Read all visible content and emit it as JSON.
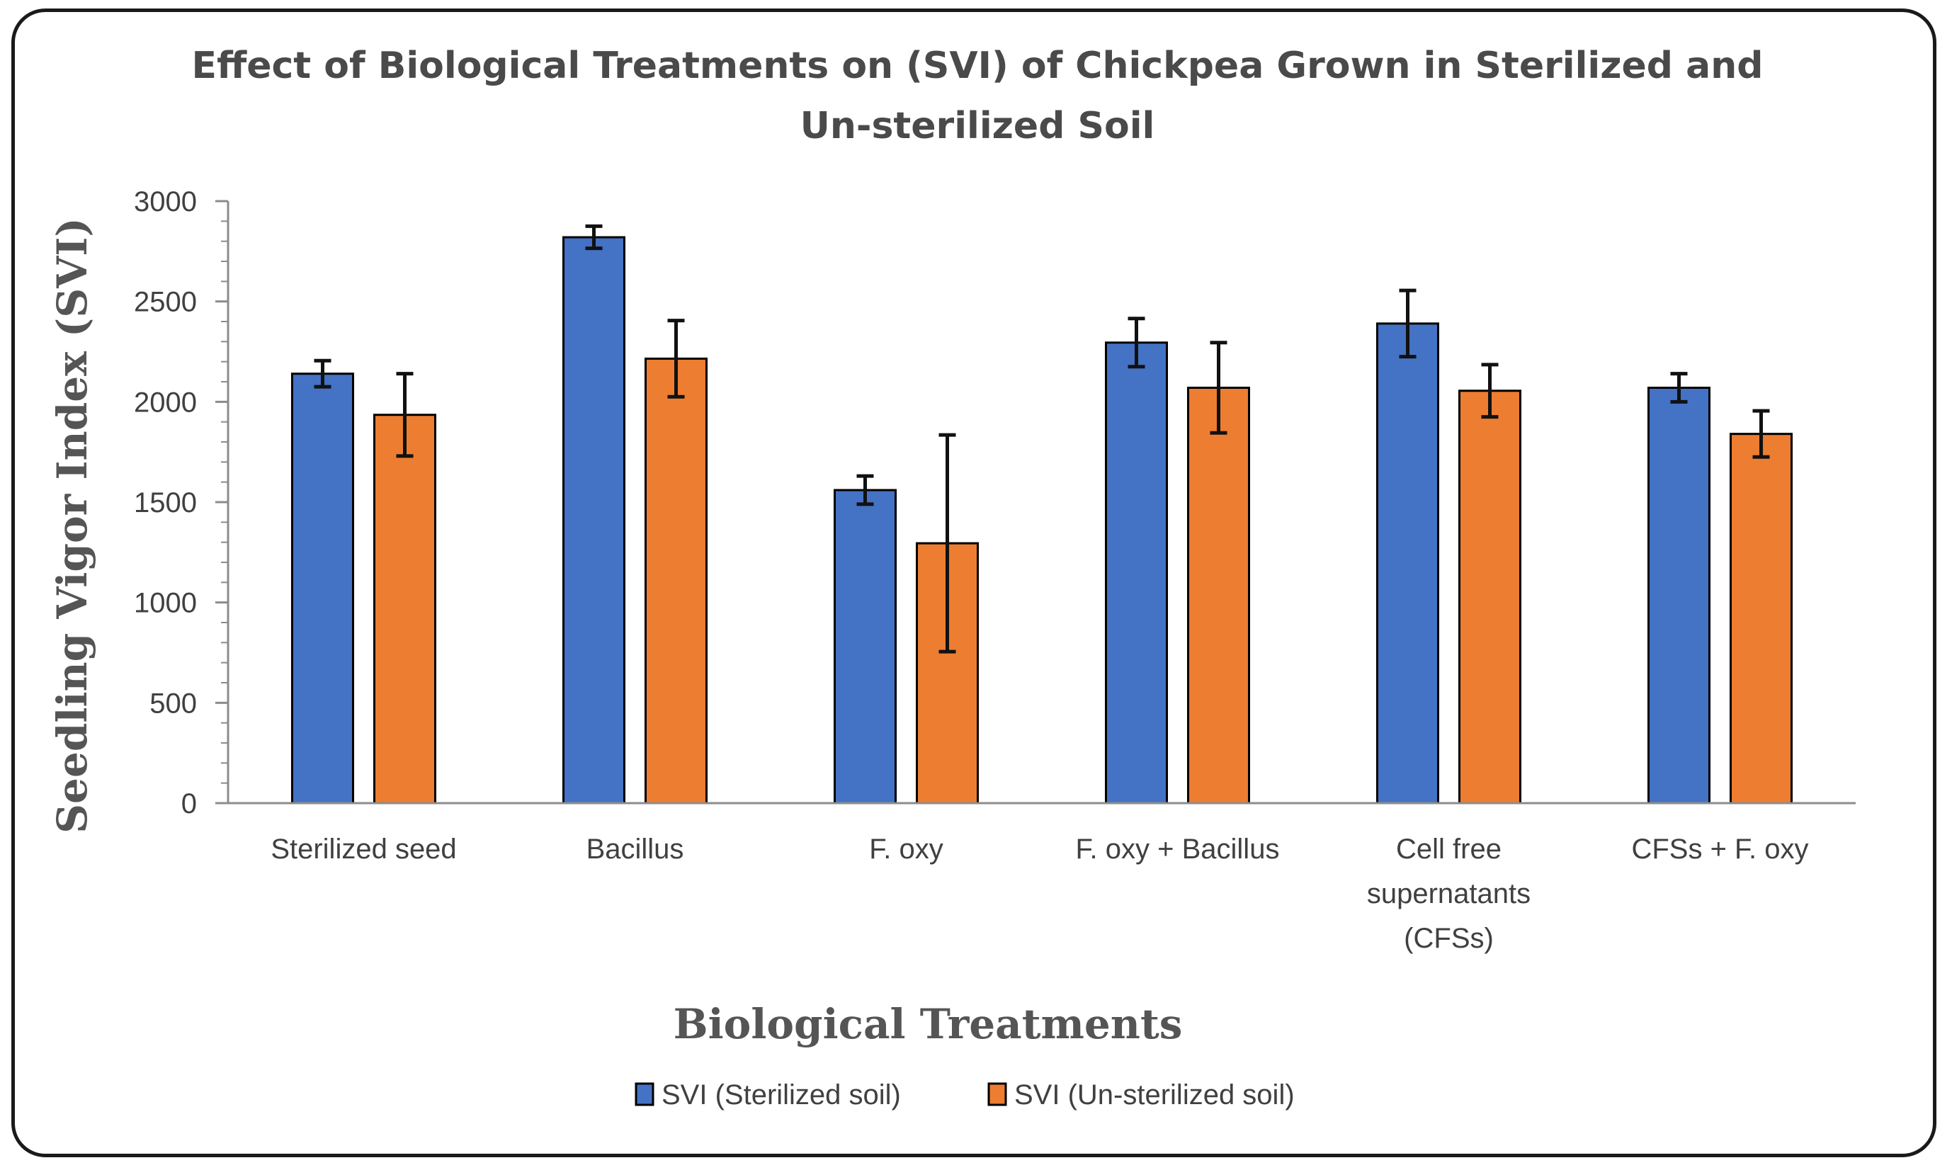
{
  "chart_data": {
    "type": "bar",
    "title": "Effect of Biological Treatments on (SVI) of Chickpea Grown in Sterilized and Un-sterilized Soil",
    "title_lines": [
      "Effect of Biological Treatments on (SVI) of Chickpea Grown in Sterilized and",
      "Un-sterilized Soil"
    ],
    "xlabel": "Biological Treatments",
    "ylabel": "Seedling Vigor Index (SVI)",
    "ylim": [
      0,
      3000
    ],
    "yticks": [
      0,
      500,
      1000,
      1500,
      2000,
      2500,
      3000
    ],
    "grid": false,
    "legend_position": "bottom",
    "categories": [
      [
        "Sterilized seed"
      ],
      [
        "Bacillus"
      ],
      [
        "F. oxy"
      ],
      [
        "F. oxy + Bacillus"
      ],
      [
        "Cell free",
        "supernatants",
        "(CFSs)"
      ],
      [
        "CFSs + F. oxy"
      ]
    ],
    "series": [
      {
        "name": "SVI (Sterilized soil)",
        "color": "#4472c4",
        "values": [
          2140,
          2820,
          1560,
          2295,
          2390,
          2070
        ],
        "errors": [
          65,
          55,
          70,
          120,
          165,
          70
        ]
      },
      {
        "name": "SVI (Un-sterilized soil)",
        "color": "#ed7d31",
        "values": [
          1935,
          2215,
          1295,
          2070,
          2055,
          1840
        ],
        "errors": [
          205,
          190,
          540,
          225,
          130,
          115
        ]
      }
    ]
  }
}
